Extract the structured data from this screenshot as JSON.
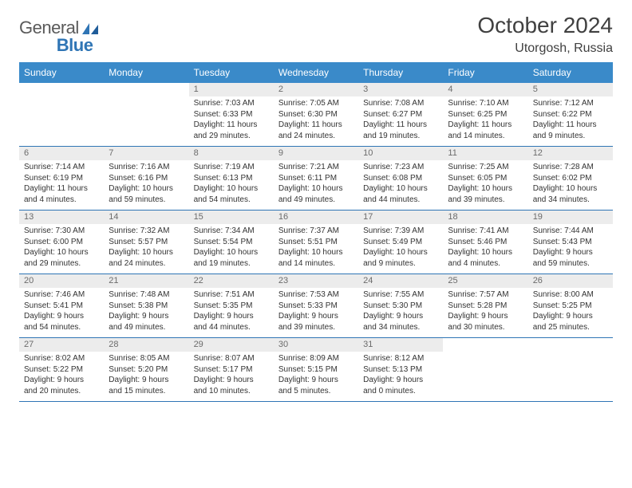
{
  "logo": {
    "line1": "General",
    "line2": "Blue"
  },
  "title": "October 2024",
  "location": "Utorgosh, Russia",
  "colors": {
    "header_bg": "#3a8ac9",
    "header_text": "#ffffff",
    "daynum_bg": "#ececec",
    "daynum_text": "#6b6b6b",
    "row_border": "#2f75b5",
    "logo_general": "#5a5a5a",
    "logo_blue": "#2f75b5",
    "body_text": "#333333",
    "title_color": "#404040"
  },
  "weekdays": [
    "Sunday",
    "Monday",
    "Tuesday",
    "Wednesday",
    "Thursday",
    "Friday",
    "Saturday"
  ],
  "weeks": [
    [
      {
        "n": null
      },
      {
        "n": null
      },
      {
        "n": 1,
        "sunrise": "Sunrise: 7:03 AM",
        "sunset": "Sunset: 6:33 PM",
        "daylight": "Daylight: 11 hours and 29 minutes."
      },
      {
        "n": 2,
        "sunrise": "Sunrise: 7:05 AM",
        "sunset": "Sunset: 6:30 PM",
        "daylight": "Daylight: 11 hours and 24 minutes."
      },
      {
        "n": 3,
        "sunrise": "Sunrise: 7:08 AM",
        "sunset": "Sunset: 6:27 PM",
        "daylight": "Daylight: 11 hours and 19 minutes."
      },
      {
        "n": 4,
        "sunrise": "Sunrise: 7:10 AM",
        "sunset": "Sunset: 6:25 PM",
        "daylight": "Daylight: 11 hours and 14 minutes."
      },
      {
        "n": 5,
        "sunrise": "Sunrise: 7:12 AM",
        "sunset": "Sunset: 6:22 PM",
        "daylight": "Daylight: 11 hours and 9 minutes."
      }
    ],
    [
      {
        "n": 6,
        "sunrise": "Sunrise: 7:14 AM",
        "sunset": "Sunset: 6:19 PM",
        "daylight": "Daylight: 11 hours and 4 minutes."
      },
      {
        "n": 7,
        "sunrise": "Sunrise: 7:16 AM",
        "sunset": "Sunset: 6:16 PM",
        "daylight": "Daylight: 10 hours and 59 minutes."
      },
      {
        "n": 8,
        "sunrise": "Sunrise: 7:19 AM",
        "sunset": "Sunset: 6:13 PM",
        "daylight": "Daylight: 10 hours and 54 minutes."
      },
      {
        "n": 9,
        "sunrise": "Sunrise: 7:21 AM",
        "sunset": "Sunset: 6:11 PM",
        "daylight": "Daylight: 10 hours and 49 minutes."
      },
      {
        "n": 10,
        "sunrise": "Sunrise: 7:23 AM",
        "sunset": "Sunset: 6:08 PM",
        "daylight": "Daylight: 10 hours and 44 minutes."
      },
      {
        "n": 11,
        "sunrise": "Sunrise: 7:25 AM",
        "sunset": "Sunset: 6:05 PM",
        "daylight": "Daylight: 10 hours and 39 minutes."
      },
      {
        "n": 12,
        "sunrise": "Sunrise: 7:28 AM",
        "sunset": "Sunset: 6:02 PM",
        "daylight": "Daylight: 10 hours and 34 minutes."
      }
    ],
    [
      {
        "n": 13,
        "sunrise": "Sunrise: 7:30 AM",
        "sunset": "Sunset: 6:00 PM",
        "daylight": "Daylight: 10 hours and 29 minutes."
      },
      {
        "n": 14,
        "sunrise": "Sunrise: 7:32 AM",
        "sunset": "Sunset: 5:57 PM",
        "daylight": "Daylight: 10 hours and 24 minutes."
      },
      {
        "n": 15,
        "sunrise": "Sunrise: 7:34 AM",
        "sunset": "Sunset: 5:54 PM",
        "daylight": "Daylight: 10 hours and 19 minutes."
      },
      {
        "n": 16,
        "sunrise": "Sunrise: 7:37 AM",
        "sunset": "Sunset: 5:51 PM",
        "daylight": "Daylight: 10 hours and 14 minutes."
      },
      {
        "n": 17,
        "sunrise": "Sunrise: 7:39 AM",
        "sunset": "Sunset: 5:49 PM",
        "daylight": "Daylight: 10 hours and 9 minutes."
      },
      {
        "n": 18,
        "sunrise": "Sunrise: 7:41 AM",
        "sunset": "Sunset: 5:46 PM",
        "daylight": "Daylight: 10 hours and 4 minutes."
      },
      {
        "n": 19,
        "sunrise": "Sunrise: 7:44 AM",
        "sunset": "Sunset: 5:43 PM",
        "daylight": "Daylight: 9 hours and 59 minutes."
      }
    ],
    [
      {
        "n": 20,
        "sunrise": "Sunrise: 7:46 AM",
        "sunset": "Sunset: 5:41 PM",
        "daylight": "Daylight: 9 hours and 54 minutes."
      },
      {
        "n": 21,
        "sunrise": "Sunrise: 7:48 AM",
        "sunset": "Sunset: 5:38 PM",
        "daylight": "Daylight: 9 hours and 49 minutes."
      },
      {
        "n": 22,
        "sunrise": "Sunrise: 7:51 AM",
        "sunset": "Sunset: 5:35 PM",
        "daylight": "Daylight: 9 hours and 44 minutes."
      },
      {
        "n": 23,
        "sunrise": "Sunrise: 7:53 AM",
        "sunset": "Sunset: 5:33 PM",
        "daylight": "Daylight: 9 hours and 39 minutes."
      },
      {
        "n": 24,
        "sunrise": "Sunrise: 7:55 AM",
        "sunset": "Sunset: 5:30 PM",
        "daylight": "Daylight: 9 hours and 34 minutes."
      },
      {
        "n": 25,
        "sunrise": "Sunrise: 7:57 AM",
        "sunset": "Sunset: 5:28 PM",
        "daylight": "Daylight: 9 hours and 30 minutes."
      },
      {
        "n": 26,
        "sunrise": "Sunrise: 8:00 AM",
        "sunset": "Sunset: 5:25 PM",
        "daylight": "Daylight: 9 hours and 25 minutes."
      }
    ],
    [
      {
        "n": 27,
        "sunrise": "Sunrise: 8:02 AM",
        "sunset": "Sunset: 5:22 PM",
        "daylight": "Daylight: 9 hours and 20 minutes."
      },
      {
        "n": 28,
        "sunrise": "Sunrise: 8:05 AM",
        "sunset": "Sunset: 5:20 PM",
        "daylight": "Daylight: 9 hours and 15 minutes."
      },
      {
        "n": 29,
        "sunrise": "Sunrise: 8:07 AM",
        "sunset": "Sunset: 5:17 PM",
        "daylight": "Daylight: 9 hours and 10 minutes."
      },
      {
        "n": 30,
        "sunrise": "Sunrise: 8:09 AM",
        "sunset": "Sunset: 5:15 PM",
        "daylight": "Daylight: 9 hours and 5 minutes."
      },
      {
        "n": 31,
        "sunrise": "Sunrise: 8:12 AM",
        "sunset": "Sunset: 5:13 PM",
        "daylight": "Daylight: 9 hours and 0 minutes."
      },
      {
        "n": null
      },
      {
        "n": null
      }
    ]
  ]
}
